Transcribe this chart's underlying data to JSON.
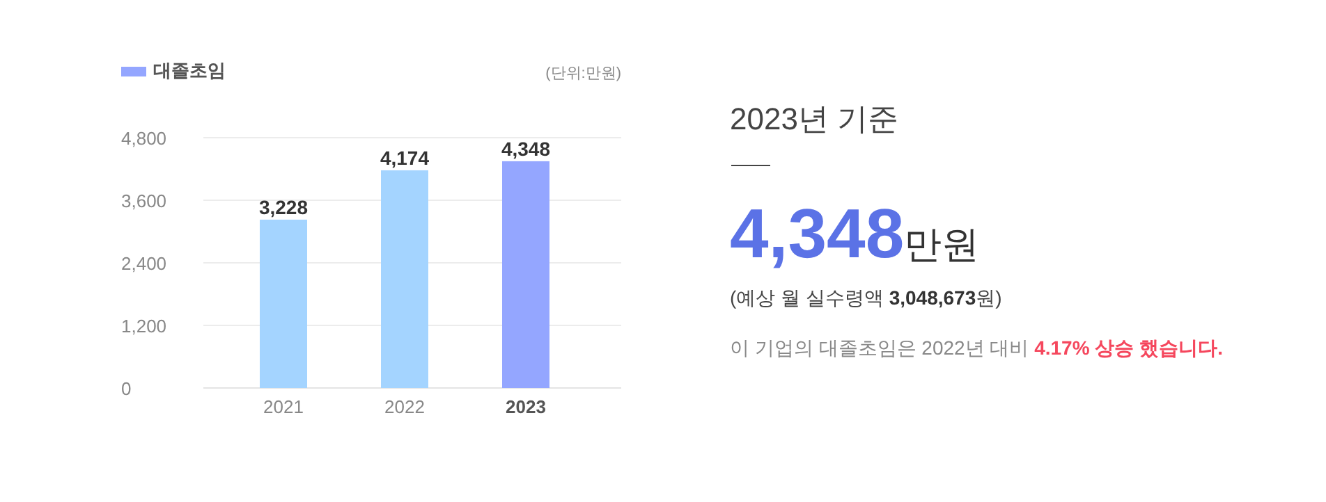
{
  "chart_data": [
    {
      "type": "bar",
      "categories": [
        "2021",
        "2022",
        "2023"
      ],
      "series": [
        {
          "name": "대졸초임",
          "color": "#94a6ff",
          "colors": [
            "#a4d4ff",
            "#a4d4ff",
            "#94a6ff"
          ],
          "values": [
            3228,
            4174,
            4348
          ],
          "value_labels": [
            "3,228",
            "4,174",
            "4,348"
          ]
        }
      ],
      "ylim": [
        0,
        4800
      ],
      "yticks": [
        0,
        {
          "value": 1200,
          "label": "1,200"
        },
        {
          "value": 2400,
          "label": "2,400"
        },
        {
          "value": 3600,
          "label": "3,600"
        },
        {
          "value": 4800,
          "label": "4,800"
        }
      ],
      "grid": "y",
      "legend": "top left",
      "annotations": [
        "(단위:만원)"
      ]
    },
    {
      "type": "other",
      "annotations": [
        "2023년 기준",
        "4,348",
        "만원",
        "(예상 월 실수령액 ",
        "3,048,673",
        "원)",
        "이 기업의 대졸초임은 2022년 대비 ",
        "4.17% 상승 했습니다."
      ]
    }
  ]
}
